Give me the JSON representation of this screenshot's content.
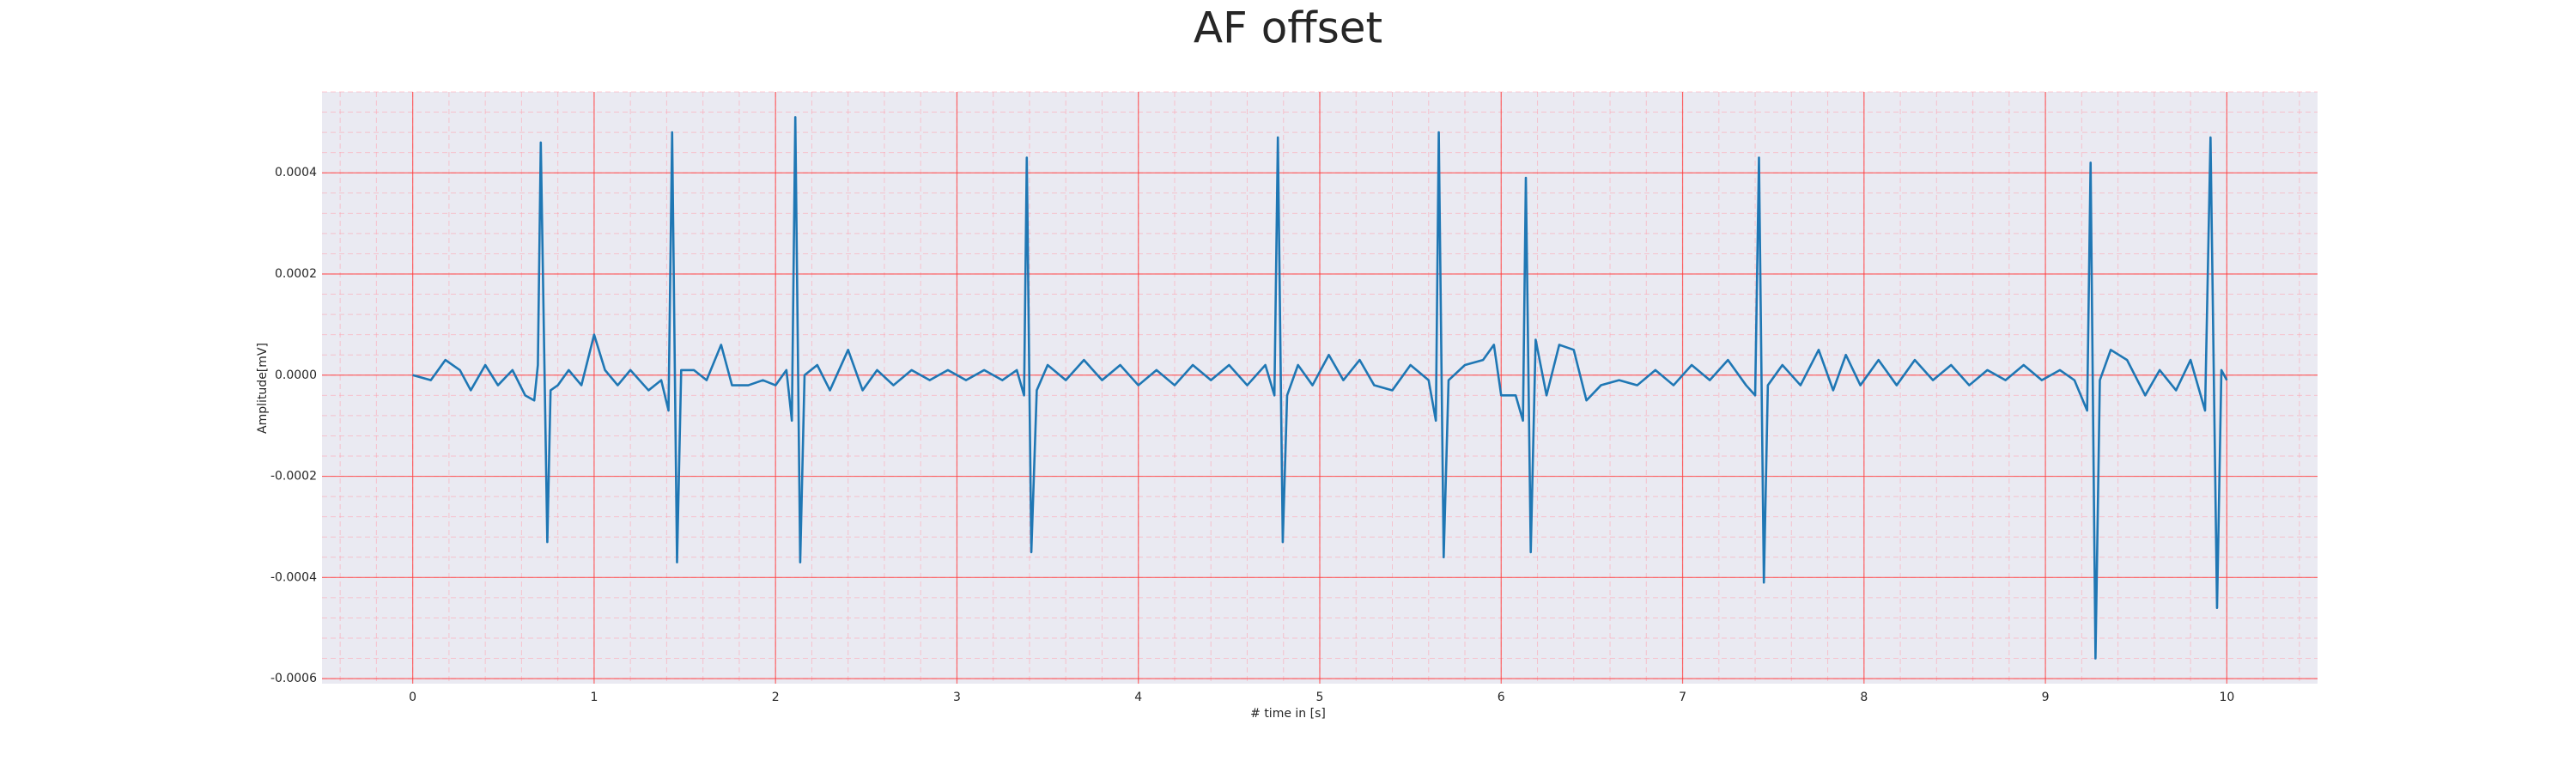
{
  "chart_data": {
    "type": "line",
    "title": "AF offset",
    "xlabel": "# time in [s]",
    "ylabel": "Amplitude[mV]",
    "color": "#1f77b4",
    "grid": true,
    "minor_grid": true,
    "xlim": [
      -0.5,
      10.5
    ],
    "xticks": [
      0,
      1,
      2,
      3,
      4,
      5,
      6,
      7,
      8,
      9,
      10
    ],
    "ylim": [
      -0.00061,
      0.00056
    ],
    "yticks": [
      -0.0006,
      -0.0004,
      -0.0002,
      {
        "value": 0,
        "label": "0.0000"
      },
      0.0002,
      0.0004
    ],
    "x": [
      0,
      0.1,
      0.18,
      0.26,
      0.32,
      0.4,
      0.47,
      0.55,
      0.62,
      0.67,
      0.69,
      0.706,
      0.742,
      0.76,
      0.8,
      0.86,
      0.93,
      1.0,
      1.06,
      1.13,
      1.2,
      1.3,
      1.37,
      1.41,
      1.43,
      1.457,
      1.48,
      1.55,
      1.62,
      1.7,
      1.76,
      1.85,
      1.93,
      2.0,
      2.06,
      2.09,
      2.109,
      2.136,
      2.16,
      2.23,
      2.3,
      2.4,
      2.48,
      2.56,
      2.65,
      2.75,
      2.85,
      2.95,
      3.05,
      3.15,
      3.25,
      3.33,
      3.37,
      3.385,
      3.41,
      3.44,
      3.5,
      3.6,
      3.7,
      3.8,
      3.9,
      4.0,
      4.1,
      4.2,
      4.3,
      4.4,
      4.5,
      4.6,
      4.7,
      4.75,
      4.769,
      4.796,
      4.82,
      4.88,
      4.96,
      5.05,
      5.13,
      5.22,
      5.3,
      5.4,
      5.5,
      5.6,
      5.64,
      5.656,
      5.683,
      5.71,
      5.8,
      5.9,
      5.96,
      6.0,
      6.08,
      6.12,
      6.136,
      6.163,
      6.19,
      6.25,
      6.32,
      6.4,
      6.47,
      6.55,
      6.65,
      6.75,
      6.85,
      6.95,
      7.05,
      7.15,
      7.25,
      7.35,
      7.4,
      7.421,
      7.448,
      7.47,
      7.55,
      7.65,
      7.75,
      7.83,
      7.9,
      7.98,
      8.08,
      8.18,
      8.28,
      8.38,
      8.48,
      8.58,
      8.68,
      8.78,
      8.88,
      8.98,
      9.08,
      9.16,
      9.23,
      9.249,
      9.276,
      9.3,
      9.36,
      9.45,
      9.55,
      9.63,
      9.72,
      9.8,
      9.88,
      9.91,
      9.946,
      9.97,
      10
    ],
    "values": [
      0,
      -1e-05,
      3e-05,
      1e-05,
      -3e-05,
      2e-05,
      -2e-05,
      1e-05,
      -4e-05,
      -5e-05,
      2e-05,
      0.00046,
      -0.00033,
      -3e-05,
      -2e-05,
      1e-05,
      -2e-05,
      8e-05,
      1e-05,
      -2e-05,
      1e-05,
      -3e-05,
      -1e-05,
      -7e-05,
      0.00048,
      -0.00037,
      1e-05,
      1e-05,
      -1e-05,
      6e-05,
      -2e-05,
      -2e-05,
      -1e-05,
      -2e-05,
      1e-05,
      -9e-05,
      0.00051,
      -0.00037,
      0,
      2e-05,
      -3e-05,
      5e-05,
      -3e-05,
      1e-05,
      -2e-05,
      1e-05,
      -1e-05,
      1e-05,
      -1e-05,
      1e-05,
      -1e-05,
      1e-05,
      -4e-05,
      0.00043,
      -0.00035,
      -3e-05,
      2e-05,
      -1e-05,
      3e-05,
      -1e-05,
      2e-05,
      -2e-05,
      1e-05,
      -2e-05,
      2e-05,
      -1e-05,
      2e-05,
      -2e-05,
      2e-05,
      -4e-05,
      0.00047,
      -0.00033,
      -4e-05,
      2e-05,
      -2e-05,
      4e-05,
      -1e-05,
      3e-05,
      -2e-05,
      -3e-05,
      2e-05,
      -1e-05,
      -9e-05,
      0.00048,
      -0.00036,
      -1e-05,
      2e-05,
      3e-05,
      6e-05,
      -4e-05,
      -4e-05,
      -9e-05,
      0.00039,
      -0.00035,
      7e-05,
      -4e-05,
      6e-05,
      5e-05,
      -5e-05,
      -2e-05,
      -1e-05,
      -2e-05,
      1e-05,
      -2e-05,
      2e-05,
      -1e-05,
      3e-05,
      -2e-05,
      -4e-05,
      0.00043,
      -0.00041,
      -2e-05,
      2e-05,
      -2e-05,
      5e-05,
      -3e-05,
      4e-05,
      -2e-05,
      3e-05,
      -2e-05,
      3e-05,
      -1e-05,
      2e-05,
      -2e-05,
      1e-05,
      -1e-05,
      2e-05,
      -1e-05,
      1e-05,
      -1e-05,
      -7e-05,
      0.00042,
      -0.00056,
      -1e-05,
      5e-05,
      3e-05,
      -4e-05,
      1e-05,
      -3e-05,
      3e-05,
      -7e-05,
      0.00047,
      -0.00046,
      1e-05,
      -1e-05
    ]
  }
}
